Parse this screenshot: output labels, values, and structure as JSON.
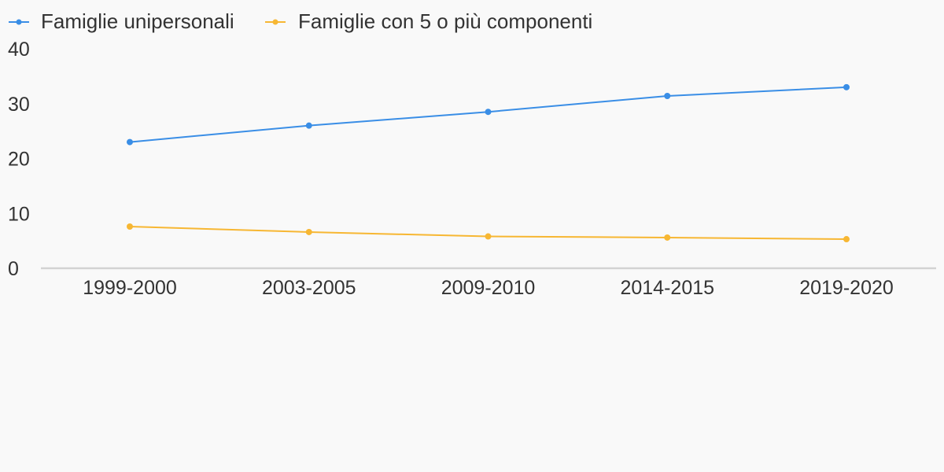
{
  "chart_data": {
    "type": "line",
    "categories": [
      "1999-2000",
      "2003-2005",
      "2009-2010",
      "2014-2015",
      "2019-2020"
    ],
    "series": [
      {
        "name": "Famiglie unipersonali",
        "color": "#3a8ee6",
        "values": [
          23.0,
          26.0,
          28.5,
          31.4,
          33.0
        ]
      },
      {
        "name": "Famiglie con 5 o più componenti",
        "color": "#f7b733",
        "values": [
          7.6,
          6.6,
          5.8,
          5.6,
          5.3
        ]
      }
    ],
    "ylim": [
      0,
      40
    ],
    "yticks": [
      "0",
      "10",
      "20",
      "30",
      "40"
    ],
    "legend_position": "top-left",
    "grid": false
  }
}
